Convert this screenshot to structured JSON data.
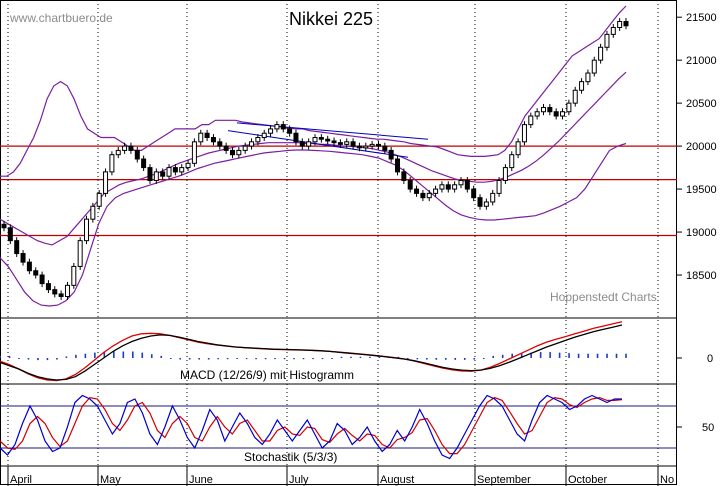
{
  "chart_data": [
    {
      "type": "candlestick",
      "title": "Nikkei 225",
      "watermark": "www.chartbuero.de",
      "credit": "Hoppenstedt Charts",
      "y_ticks": [
        18500,
        19000,
        19500,
        20000,
        20500,
        21000,
        21500
      ],
      "ylim": [
        18000,
        21700
      ],
      "x_ticks": [
        "April",
        "May",
        "June",
        "July",
        "August",
        "September",
        "October",
        "No"
      ],
      "horizontal_lines": [
        20000,
        19610,
        18960
      ],
      "series": [
        {
          "type": "ohlc-close",
          "values": [
            19050,
            18900,
            18750,
            18650,
            18550,
            18500,
            18400,
            18330,
            18280,
            18250,
            18380,
            18600,
            18900,
            19150,
            19300,
            19450,
            19700,
            19900,
            19950,
            20000,
            19950,
            19850,
            19750,
            19600,
            19700,
            19650,
            19750,
            19700,
            19750,
            19800,
            20050,
            20150,
            20100,
            20050,
            20000,
            19950,
            19900,
            19950,
            20000,
            20050,
            20100,
            20150,
            20200,
            20250,
            20200,
            20150,
            20050,
            20000,
            20050,
            20100,
            20080,
            20060,
            20040,
            20020,
            20050,
            20000,
            19980,
            20000,
            20020,
            20000,
            19950,
            19850,
            19700,
            19600,
            19500,
            19450,
            19400,
            19450,
            19500,
            19550,
            19500,
            19550,
            19600,
            19500,
            19400,
            19300,
            19350,
            19450,
            19600,
            19750,
            19900,
            20050,
            20250,
            20350,
            20400,
            20450,
            20400,
            20350,
            20400,
            20500,
            20650,
            20750,
            20850,
            21000,
            21150,
            21300,
            21380,
            21450,
            21400
          ]
        },
        {
          "type": "bollinger-upper",
          "values": [
            19650,
            19650,
            19700,
            19800,
            19950,
            20100,
            20300,
            20550,
            20700,
            20750,
            20700,
            20550,
            20350,
            20200,
            20150,
            20100,
            20100,
            20100,
            20050,
            20000,
            19950,
            19950,
            20000,
            20050,
            20100,
            20150,
            20200,
            20200,
            20200,
            20200,
            20250,
            20250,
            20300,
            20300,
            20300,
            20300,
            20280,
            20270,
            20260,
            20250,
            20240,
            20230,
            20220,
            20210,
            20200,
            20200,
            20180,
            20170,
            20160,
            20150,
            20140,
            20130,
            20120,
            20110,
            20100,
            20090,
            20080,
            20080,
            20070,
            20060,
            20050,
            20030,
            20020,
            20010,
            20000,
            19990,
            19960,
            19930,
            19900,
            19890,
            19880,
            19880,
            19880,
            19890,
            19900,
            19950,
            20050,
            20200,
            20350,
            20450,
            20550,
            20650,
            20750,
            20850,
            20950,
            21050,
            21100,
            21150,
            21200,
            21250,
            21350,
            21450,
            21550,
            21630
          ]
        },
        {
          "type": "bollinger-middle",
          "values": [
            19150,
            19100,
            19050,
            19000,
            18950,
            18900,
            18870,
            18850,
            18900,
            18950,
            19050,
            19150,
            19250,
            19350,
            19450,
            19500,
            19550,
            19580,
            19600,
            19620,
            19650,
            19680,
            19720,
            19760,
            19800,
            19830,
            19860,
            19890,
            19920,
            19940,
            19960,
            19980,
            20000,
            20010,
            20020,
            20030,
            20040,
            20040,
            20040,
            20040,
            20040,
            20030,
            20030,
            20020,
            20020,
            20010,
            20000,
            20000,
            19990,
            19980,
            19970,
            19950,
            19930,
            19900,
            19870,
            19830,
            19790,
            19750,
            19710,
            19680,
            19650,
            19620,
            19600,
            19590,
            19580,
            19580,
            19590,
            19610,
            19640,
            19680,
            19720,
            19770,
            19830,
            19900,
            19980,
            20060,
            20150,
            20240,
            20330,
            20420,
            20510,
            20600,
            20690,
            20780,
            20860
          ]
        },
        {
          "type": "bollinger-lower",
          "values": [
            18700,
            18600,
            18450,
            18300,
            18200,
            18150,
            18140,
            18150,
            18200,
            18300,
            18500,
            18800,
            19100,
            19300,
            19400,
            19450,
            19480,
            19510,
            19540,
            19570,
            19600,
            19630,
            19660,
            19700,
            19740,
            19770,
            19800,
            19820,
            19840,
            19860,
            19880,
            19900,
            19920,
            19930,
            19940,
            19950,
            19955,
            19955,
            19950,
            19945,
            19940,
            19930,
            19920,
            19910,
            19900,
            19880,
            19860,
            19820,
            19780,
            19720,
            19640,
            19560,
            19480,
            19400,
            19320,
            19250,
            19200,
            19170,
            19150,
            19140,
            19140,
            19150,
            19160,
            19170,
            19180,
            19190,
            19220,
            19260,
            19300,
            19350,
            19400,
            19500,
            19650,
            19800,
            19950,
            20000,
            20030
          ]
        },
        {
          "type": "trendline-upper",
          "values": [
            20270,
            20080
          ]
        },
        {
          "type": "trendline-lower",
          "values": [
            20180,
            19870
          ]
        }
      ]
    },
    {
      "type": "line",
      "label": "MACD (12/26/9) mit Histogramm",
      "y_ticks": [
        0
      ],
      "series": [
        {
          "type": "macd",
          "values": [
            -40,
            -70,
            -100,
            -140,
            -170,
            -190,
            -200,
            -195,
            -170,
            -120,
            -60,
            0,
            60,
            110,
            150,
            180,
            200,
            210,
            205,
            190,
            170,
            150,
            135,
            120,
            110,
            100,
            95,
            90,
            85,
            80,
            78,
            76,
            74,
            70,
            66,
            60,
            52,
            44,
            36,
            28,
            20,
            10,
            0,
            -10,
            -25,
            -45,
            -65,
            -85,
            -100,
            -110,
            -115,
            -110,
            -95,
            -70,
            -40,
            -5,
            30,
            65,
            100,
            130,
            160,
            190,
            215,
            240,
            260,
            280,
            300
          ]
        },
        {
          "type": "signal",
          "values": [
            -30,
            -60,
            -100,
            -145,
            -180,
            -200,
            -205,
            -190,
            -150,
            -90,
            -20,
            50,
            110,
            160,
            200,
            220,
            225,
            220,
            205,
            185,
            165,
            145,
            130,
            118,
            108,
            100,
            94,
            88,
            83,
            79,
            76,
            74,
            72,
            69,
            65,
            60,
            54,
            46,
            38,
            30,
            22,
            12,
            2,
            -10,
            -28,
            -50,
            -72,
            -92,
            -108,
            -118,
            -120,
            -110,
            -85,
            -50,
            -10,
            30,
            70,
            110,
            145,
            170,
            195,
            220,
            245,
            270,
            290,
            310,
            330
          ]
        },
        {
          "type": "histogram",
          "values": [
            -10,
            -10,
            0,
            5,
            10,
            10,
            5,
            -5,
            -20,
            -30,
            -40,
            -50,
            -50,
            -50,
            -50,
            -40,
            -25,
            -10,
            0,
            5,
            5,
            5,
            5,
            2,
            2,
            0,
            1,
            2,
            2,
            1,
            2,
            2,
            2,
            1,
            1,
            0,
            -2,
            -2,
            -2,
            -2,
            -2,
            -2,
            -2,
            0,
            3,
            5,
            7,
            7,
            8,
            8,
            5,
            0,
            -10,
            -20,
            -30,
            -35,
            -40,
            -45,
            -45,
            -40,
            -35,
            -30,
            -30,
            -30,
            -30,
            -30,
            -30
          ]
        }
      ]
    },
    {
      "type": "line",
      "label": "Stochastik (5/3/3)",
      "y_ticks": [
        50
      ],
      "ylim": [
        0,
        100
      ],
      "horizontal_lines": [
        80,
        20
      ],
      "series": [
        {
          "type": "stoch-k",
          "values": [
            20,
            10,
            25,
            55,
            80,
            60,
            30,
            15,
            20,
            50,
            85,
            95,
            90,
            80,
            60,
            40,
            55,
            85,
            90,
            70,
            40,
            25,
            50,
            80,
            60,
            35,
            20,
            45,
            75,
            60,
            30,
            50,
            70,
            55,
            35,
            25,
            40,
            60,
            45,
            30,
            45,
            60,
            40,
            20,
            30,
            55,
            45,
            25,
            35,
            50,
            30,
            15,
            25,
            45,
            30,
            50,
            75,
            55,
            30,
            10,
            5,
            20,
            40,
            60,
            80,
            95,
            90,
            80,
            60,
            40,
            30,
            60,
            85,
            95,
            90,
            85,
            75,
            80,
            90,
            95,
            90,
            85,
            90,
            90
          ]
        },
        {
          "type": "stoch-d",
          "values": [
            30,
            20,
            18,
            30,
            55,
            65,
            55,
            35,
            22,
            30,
            55,
            80,
            92,
            90,
            75,
            55,
            45,
            60,
            80,
            85,
            70,
            45,
            35,
            55,
            65,
            55,
            35,
            30,
            50,
            65,
            50,
            40,
            55,
            60,
            45,
            30,
            30,
            45,
            50,
            40,
            38,
            50,
            48,
            32,
            28,
            40,
            48,
            38,
            30,
            40,
            38,
            25,
            20,
            32,
            35,
            42,
            60,
            62,
            45,
            25,
            12,
            12,
            25,
            45,
            65,
            85,
            92,
            88,
            72,
            55,
            40,
            45,
            65,
            85,
            92,
            90,
            82,
            78,
            85,
            90,
            92,
            88,
            88,
            89
          ]
        }
      ]
    }
  ],
  "colors": {
    "candle": "#000000",
    "bollinger": "#7b1fa2",
    "hline": "#c00000",
    "trend": "#0000c0",
    "macd": "#000000",
    "signal": "#e00000",
    "hist": "#1a3cc8",
    "stoch_k": "#0000d0",
    "stoch_d": "#d00000"
  }
}
